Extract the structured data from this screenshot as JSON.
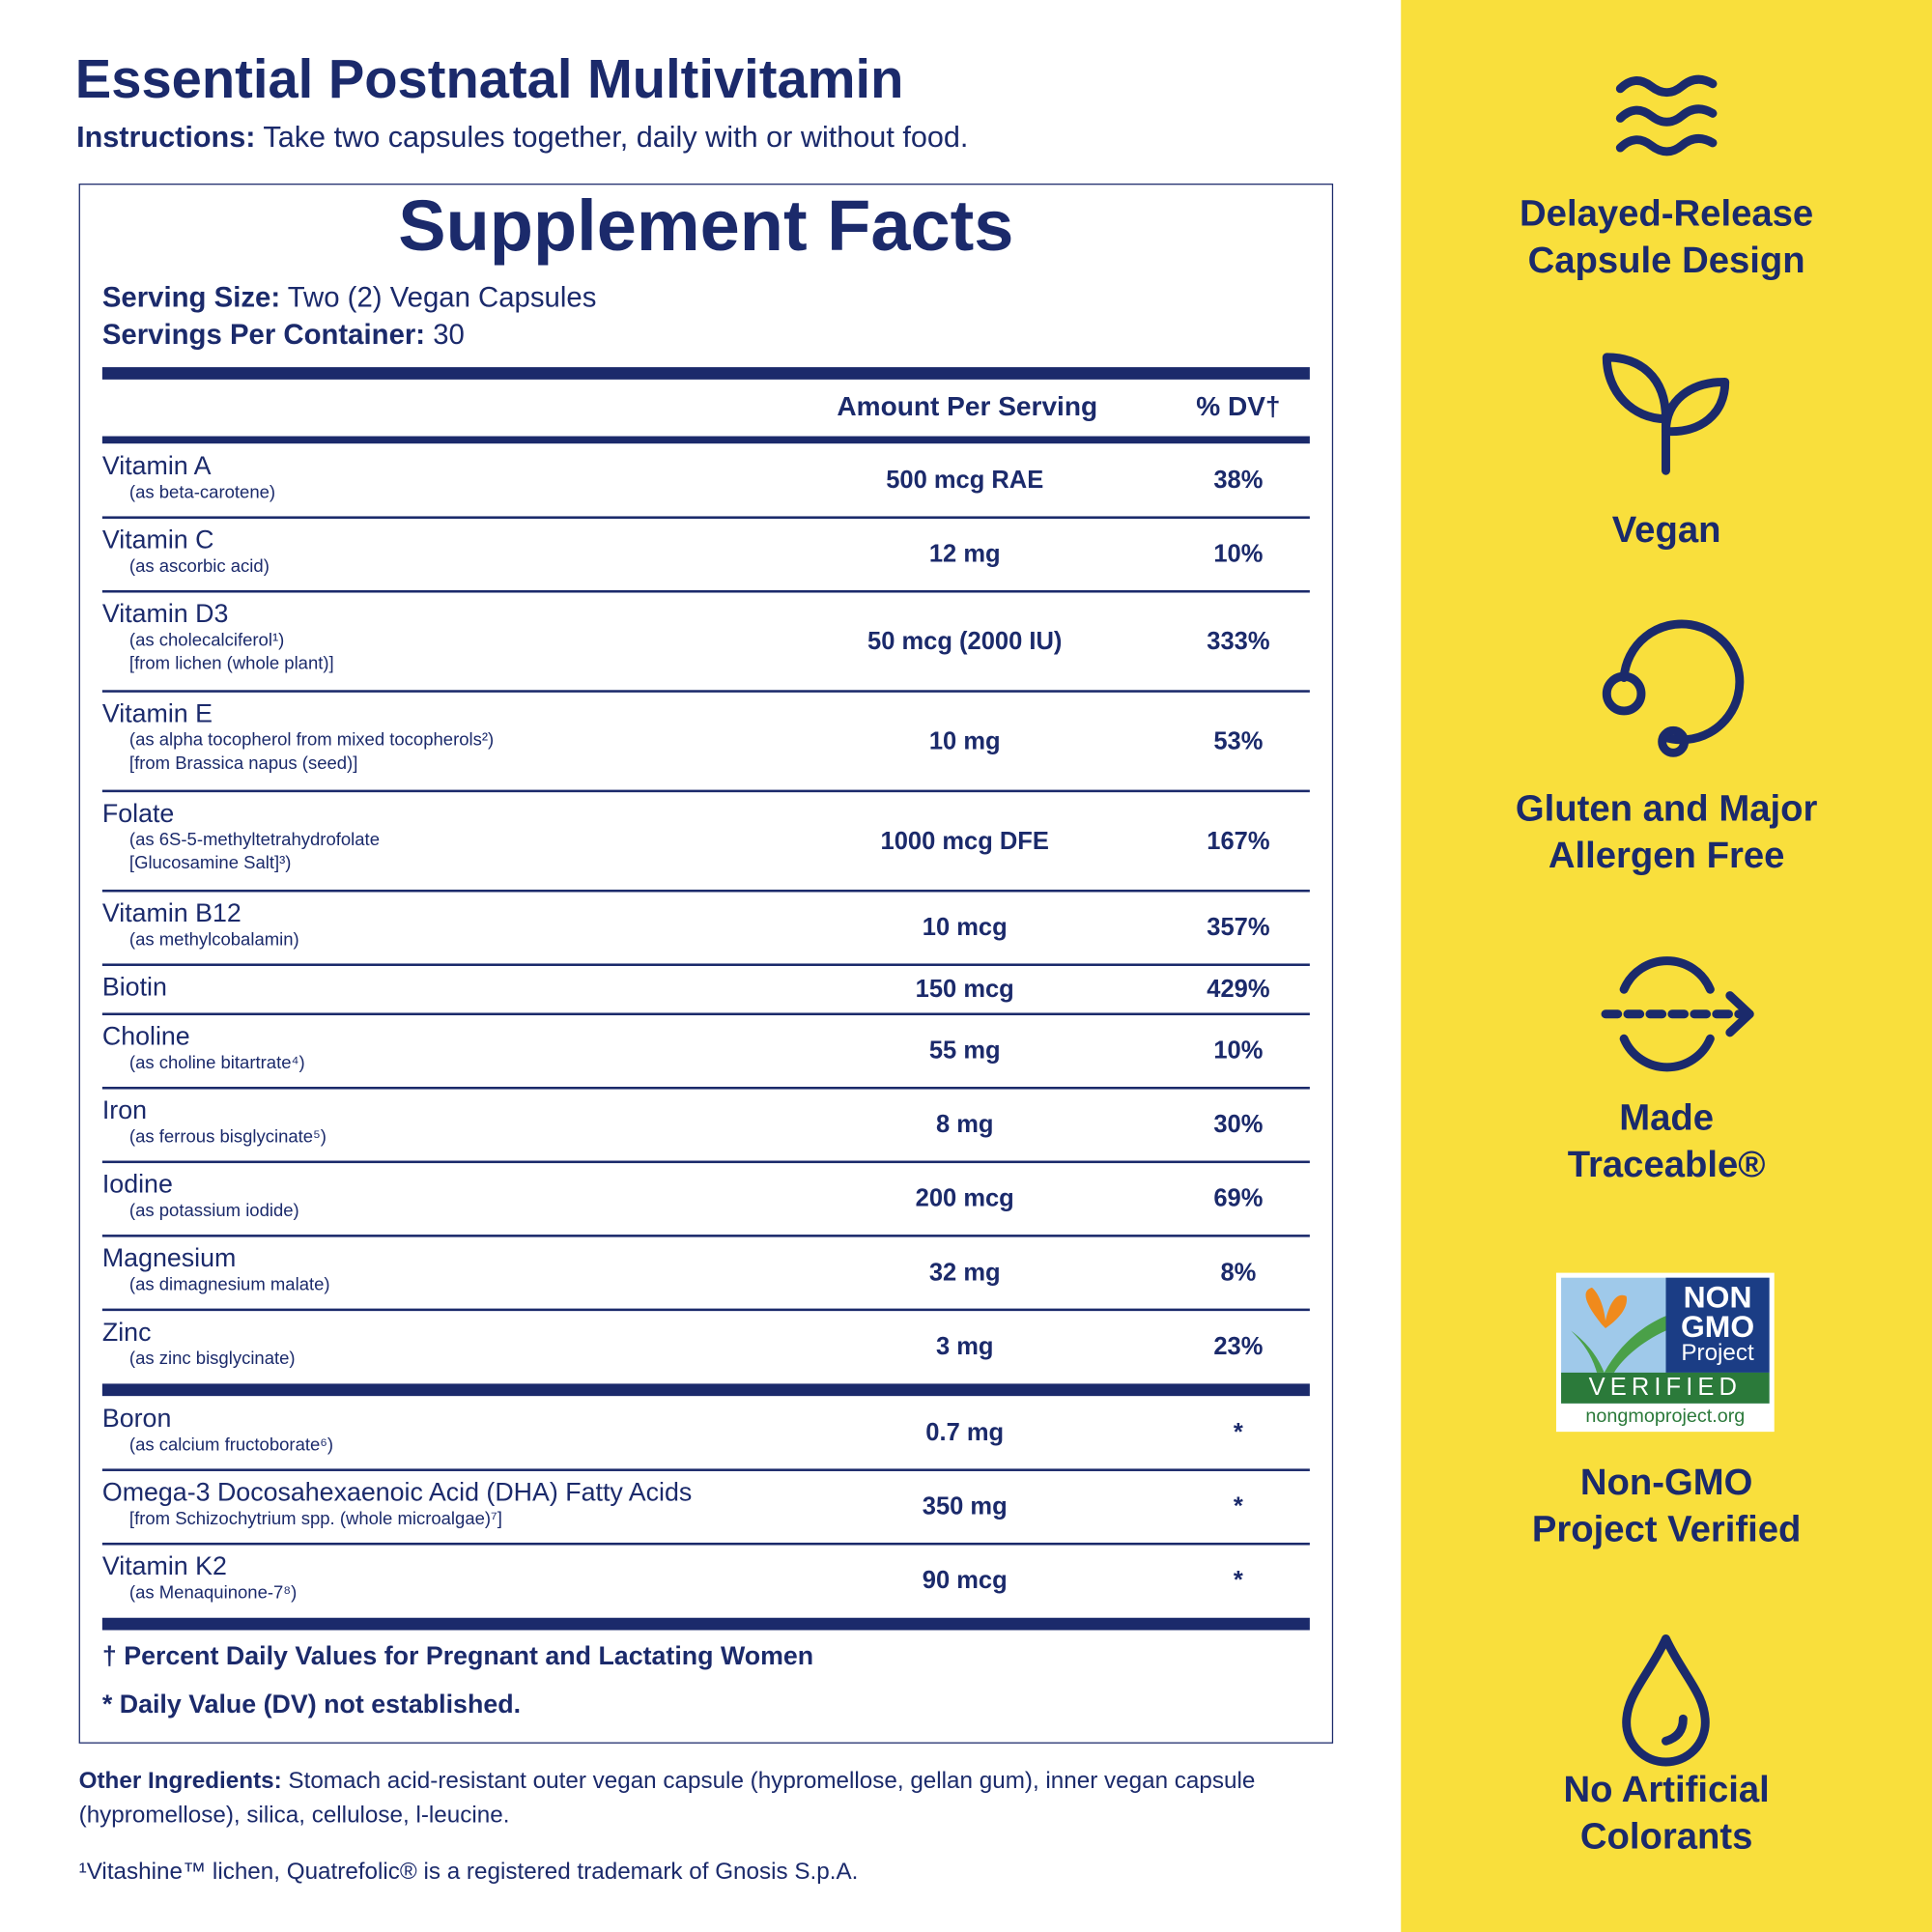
{
  "header": {
    "title": "Essential Postnatal Multivitamin",
    "instructions_label": "Instructions:",
    "instructions": "Take two capsules together, daily with or without food."
  },
  "facts": {
    "title": "Supplement Facts",
    "serving_size_label": "Serving Size:",
    "serving_size": "Two (2) Vegan Capsules",
    "servings_label": "Servings Per Container:",
    "servings": "30",
    "col_amount": "Amount Per Serving",
    "col_dv": "% DV†",
    "sections": [
      {
        "rows": [
          {
            "name": "Vitamin A",
            "notes": [
              "(as beta-carotene)"
            ],
            "amount": "500 mcg RAE",
            "dv": "38%"
          },
          {
            "name": "Vitamin C",
            "notes": [
              "(as ascorbic acid)"
            ],
            "amount": "12 mg",
            "dv": "10%"
          },
          {
            "name": "Vitamin D3",
            "notes": [
              "(as cholecalciferol¹)",
              "[from lichen (whole plant)]"
            ],
            "amount": "50 mcg (2000 IU)",
            "dv": "333%"
          },
          {
            "name": "Vitamin E",
            "notes": [
              "(as alpha tocopherol from mixed tocopherols²)",
              "[from Brassica napus (seed)]"
            ],
            "amount": "10 mg",
            "dv": "53%"
          },
          {
            "name": "Folate",
            "notes": [
              "(as 6S-5-methyltetrahydrofolate",
              "[Glucosamine Salt]³)"
            ],
            "amount": "1000 mcg DFE",
            "dv": "167%"
          },
          {
            "name": "Vitamin B12",
            "notes": [
              "(as methylcobalamin)"
            ],
            "amount": "10 mcg",
            "dv": "357%"
          },
          {
            "name": "Biotin",
            "notes": [],
            "amount": "150 mcg",
            "dv": "429%"
          },
          {
            "name": "Choline",
            "notes": [
              "(as choline bitartrate⁴)"
            ],
            "amount": "55 mg",
            "dv": "10%"
          },
          {
            "name": "Iron",
            "notes": [
              "(as ferrous bisglycinate⁵)"
            ],
            "amount": "8 mg",
            "dv": "30%"
          },
          {
            "name": "Iodine",
            "notes": [
              "(as potassium iodide)"
            ],
            "amount": "200 mcg",
            "dv": "69%"
          },
          {
            "name": "Magnesium",
            "notes": [
              "(as dimagnesium malate)"
            ],
            "amount": "32 mg",
            "dv": "8%"
          },
          {
            "name": "Zinc",
            "notes": [
              "(as zinc bisglycinate)"
            ],
            "amount": "3 mg",
            "dv": "23%"
          }
        ]
      },
      {
        "rows": [
          {
            "name": "Boron",
            "notes": [
              "(as calcium fructoborate⁶)"
            ],
            "amount": "0.7 mg",
            "dv": "*"
          },
          {
            "name": "Omega-3 Docosahexaenoic Acid (DHA) Fatty Acids",
            "notes": [
              "[from Schizochytrium spp. (whole microalgae)⁷]"
            ],
            "amount": "350 mg",
            "dv": "*"
          },
          {
            "name": "Vitamin K2",
            "notes": [
              "(as Menaquinone-7⁸)"
            ],
            "amount": "90 mcg",
            "dv": "*"
          }
        ]
      }
    ],
    "footnotes": [
      "† Percent Daily Values for Pregnant and Lactating Women",
      "* Daily Value (DV) not established."
    ]
  },
  "other_ingredients": {
    "label": "Other Ingredients:",
    "text": "Stomach acid-resistant outer vegan capsule (hypromellose, gellan gum), inner vegan capsule (hypromellose), silica, cellulose, l-leucine."
  },
  "trademark": "¹Vitashine™ lichen, Quatrefolic® is a registered trademark of Gnosis S.p.A.",
  "features": [
    {
      "label": [
        "Delayed-Release",
        "Capsule Design"
      ]
    },
    {
      "label": [
        "Vegan"
      ]
    },
    {
      "label": [
        "Gluten and Major",
        "Allergen Free"
      ]
    },
    {
      "label": [
        "Made",
        "Traceable®"
      ]
    },
    {
      "label": [
        "Non-GMO",
        "Project Verified"
      ]
    },
    {
      "label": [
        "No Artificial",
        "Colorants"
      ]
    }
  ],
  "badge": {
    "line1": "NON",
    "line2": "GMO",
    "line3": "Project",
    "verified": "VERIFIED",
    "url": "nongmoproject.org"
  }
}
